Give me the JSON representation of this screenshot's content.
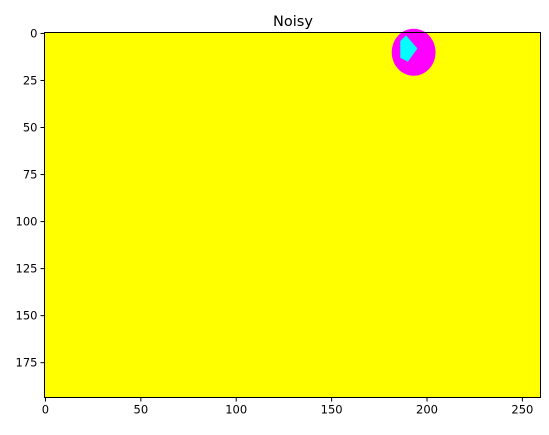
{
  "chart_data": {
    "type": "heatmap",
    "title": "Noisy",
    "xlabel": "",
    "ylabel": "",
    "xlim": [
      -0.5,
      259.5
    ],
    "ylim": [
      193.5,
      -0.5
    ],
    "x_ticks": [
      0,
      50,
      100,
      150,
      200,
      250
    ],
    "y_ticks": [
      0,
      25,
      50,
      75,
      100,
      125,
      150,
      175
    ],
    "grid": false,
    "legend": "none",
    "image": {
      "width": 260,
      "height": 194,
      "background_color": "#ffff00",
      "regions": [
        {
          "name": "outer-blob",
          "color": "#ff00ff",
          "center": [
            193,
            10
          ],
          "radius_x": 11.5,
          "radius_y": 12.5
        },
        {
          "name": "inner-blob",
          "color": "#00ffff",
          "polygon": [
            [
              189,
              1
            ],
            [
              195,
              8
            ],
            [
              190,
              15
            ],
            [
              186,
              13
            ],
            [
              186,
              4
            ]
          ]
        }
      ]
    }
  }
}
